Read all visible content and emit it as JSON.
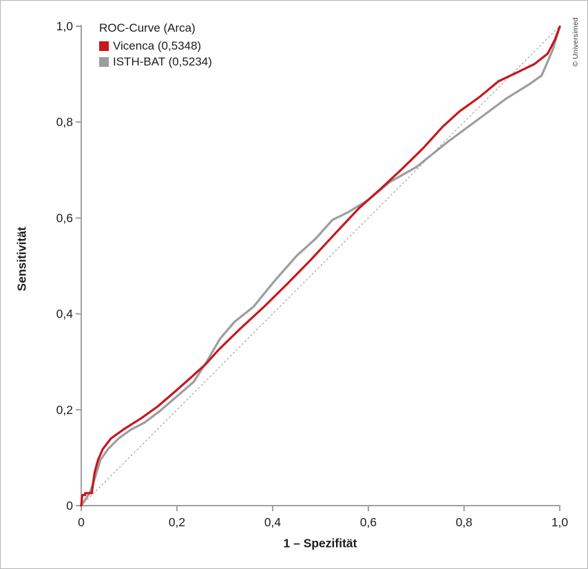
{
  "figure": {
    "credit": "© Universimed",
    "background": "#ffffff",
    "border_color": "#b3b3b3"
  },
  "chart_data": {
    "type": "line",
    "title": "ROC-Curve (Arca)",
    "xlabel": "1 – Spezifität",
    "ylabel": "Sensitivität",
    "xlim": [
      0,
      1
    ],
    "ylim": [
      0,
      1
    ],
    "grid": false,
    "legend_position": "top-left",
    "text_color": "#1d1d1b",
    "axis_color": "#a0a0a0",
    "tick_values": [
      0,
      0.2,
      0.4,
      0.6,
      0.8,
      1.0
    ],
    "x_tick_labels": [
      "0",
      "0,2",
      "0,4",
      "0,6",
      "0,8",
      "1,0"
    ],
    "y_tick_labels": [
      "0",
      "0,2",
      "0,4",
      "0,6",
      "0,8",
      "1,0"
    ],
    "reference_line": {
      "style": "dashed",
      "color": "#8f8f8f",
      "from": [
        0,
        0
      ],
      "to": [
        1,
        1
      ]
    },
    "series": [
      {
        "name": "Vicenca (0,5348)",
        "auc": "0,5348",
        "color": "#c8171d",
        "points": [
          [
            0,
            0
          ],
          [
            0.002,
            0.022
          ],
          [
            0.008,
            0.022
          ],
          [
            0.008,
            0.026
          ],
          [
            0.022,
            0.026
          ],
          [
            0.028,
            0.07
          ],
          [
            0.035,
            0.095
          ],
          [
            0.045,
            0.118
          ],
          [
            0.062,
            0.14
          ],
          [
            0.09,
            0.16
          ],
          [
            0.125,
            0.182
          ],
          [
            0.16,
            0.207
          ],
          [
            0.195,
            0.237
          ],
          [
            0.23,
            0.268
          ],
          [
            0.26,
            0.295
          ],
          [
            0.287,
            0.325
          ],
          [
            0.33,
            0.367
          ],
          [
            0.38,
            0.413
          ],
          [
            0.43,
            0.462
          ],
          [
            0.48,
            0.513
          ],
          [
            0.53,
            0.567
          ],
          [
            0.58,
            0.62
          ],
          [
            0.625,
            0.66
          ],
          [
            0.67,
            0.702
          ],
          [
            0.715,
            0.746
          ],
          [
            0.755,
            0.79
          ],
          [
            0.79,
            0.822
          ],
          [
            0.832,
            0.852
          ],
          [
            0.872,
            0.885
          ],
          [
            0.912,
            0.904
          ],
          [
            0.947,
            0.921
          ],
          [
            0.975,
            0.943
          ],
          [
            0.99,
            0.972
          ],
          [
            1,
            0.999
          ]
        ]
      },
      {
        "name": "ISTH-BAT (0,5234)",
        "auc": "0,5234",
        "color": "#9d9d9d",
        "points": [
          [
            0,
            0
          ],
          [
            0.008,
            0.012
          ],
          [
            0.018,
            0.027
          ],
          [
            0.028,
            0.056
          ],
          [
            0.04,
            0.095
          ],
          [
            0.056,
            0.118
          ],
          [
            0.078,
            0.14
          ],
          [
            0.103,
            0.158
          ],
          [
            0.132,
            0.173
          ],
          [
            0.165,
            0.198
          ],
          [
            0.2,
            0.228
          ],
          [
            0.235,
            0.258
          ],
          [
            0.262,
            0.3
          ],
          [
            0.29,
            0.348
          ],
          [
            0.32,
            0.383
          ],
          [
            0.36,
            0.415
          ],
          [
            0.405,
            0.47
          ],
          [
            0.45,
            0.521
          ],
          [
            0.49,
            0.557
          ],
          [
            0.525,
            0.596
          ],
          [
            0.558,
            0.612
          ],
          [
            0.6,
            0.638
          ],
          [
            0.645,
            0.675
          ],
          [
            0.7,
            0.706
          ],
          [
            0.765,
            0.758
          ],
          [
            0.83,
            0.806
          ],
          [
            0.888,
            0.849
          ],
          [
            0.935,
            0.878
          ],
          [
            0.962,
            0.897
          ],
          [
            0.985,
            0.95
          ],
          [
            1,
            0.999
          ]
        ]
      }
    ]
  }
}
